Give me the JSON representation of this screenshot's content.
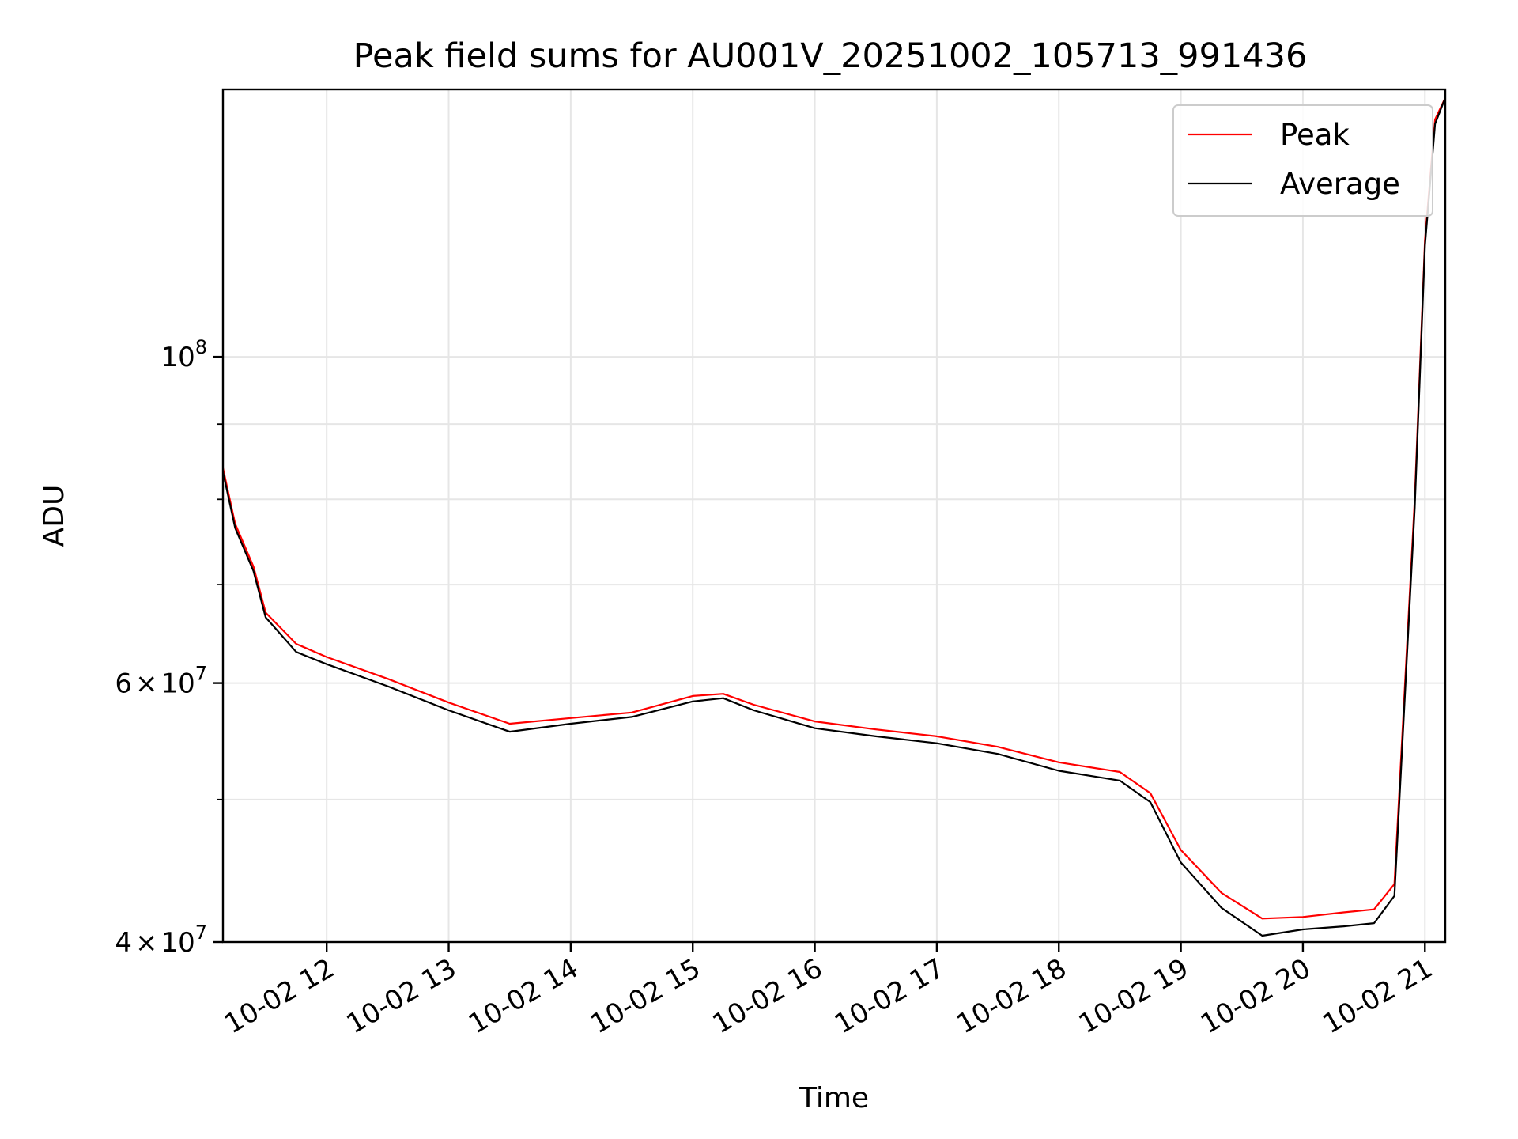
{
  "chart_data": {
    "type": "line",
    "title": "Peak field sums for AU001V_20251002_105713_991436",
    "xlabel": "Time",
    "ylabel": "ADU",
    "y_scale": "log",
    "ylim": [
      40000000,
      152000000
    ],
    "xlim": [
      "10-02 11:09",
      "10-02 21:10"
    ],
    "grid": true,
    "legend_position": "top-right",
    "x_ticks": [
      "10-02 12",
      "10-02 13",
      "10-02 14",
      "10-02 15",
      "10-02 16",
      "10-02 17",
      "10-02 18",
      "10-02 19",
      "10-02 20",
      "10-02 21"
    ],
    "y_ticks": [
      {
        "value": 40000000,
        "mantissa": "4",
        "exponent": "7"
      },
      {
        "value": 60000000,
        "mantissa": "6",
        "exponent": "7"
      },
      {
        "value": 100000000,
        "mantissa": "",
        "exponent": "8"
      }
    ],
    "y_minor_ticks": [
      50000000,
      70000000,
      80000000,
      90000000
    ],
    "series": [
      {
        "name": "Peak",
        "color": "#ff0000",
        "x": [
          "10-02 11:09",
          "10-02 11:15",
          "10-02 11:24",
          "10-02 11:30",
          "10-02 11:45",
          "10-02 12:00",
          "10-02 12:30",
          "10-02 13:00",
          "10-02 13:30",
          "10-02 14:00",
          "10-02 14:30",
          "10-02 15:00",
          "10-02 15:15",
          "10-02 15:30",
          "10-02 16:00",
          "10-02 16:30",
          "10-02 17:00",
          "10-02 17:30",
          "10-02 18:00",
          "10-02 18:30",
          "10-02 18:45",
          "10-02 19:00",
          "10-02 19:20",
          "10-02 19:40",
          "10-02 20:00",
          "10-02 20:20",
          "10-02 20:35",
          "10-02 20:45",
          "10-02 20:55",
          "10-02 21:00",
          "10-02 21:05",
          "10-02 21:10"
        ],
        "y": [
          84000000,
          77000000,
          72000000,
          67000000,
          63800000,
          62500000,
          60400000,
          58200000,
          56300000,
          56800000,
          57300000,
          58800000,
          59000000,
          58000000,
          56500000,
          55800000,
          55200000,
          54300000,
          53000000,
          52200000,
          50500000,
          46200000,
          43200000,
          41500000,
          41600000,
          41900000,
          42100000,
          43800000,
          80000000,
          120000000,
          145000000,
          150000000
        ]
      },
      {
        "name": "Average",
        "color": "#000000",
        "x": [
          "10-02 11:09",
          "10-02 11:15",
          "10-02 11:24",
          "10-02 11:30",
          "10-02 11:45",
          "10-02 12:00",
          "10-02 12:30",
          "10-02 13:00",
          "10-02 13:30",
          "10-02 14:00",
          "10-02 14:30",
          "10-02 15:00",
          "10-02 15:15",
          "10-02 15:30",
          "10-02 16:00",
          "10-02 16:30",
          "10-02 17:00",
          "10-02 17:30",
          "10-02 18:00",
          "10-02 18:30",
          "10-02 18:45",
          "10-02 19:00",
          "10-02 19:20",
          "10-02 19:40",
          "10-02 20:00",
          "10-02 20:20",
          "10-02 20:35",
          "10-02 20:45",
          "10-02 20:55",
          "10-02 21:00",
          "10-02 21:05",
          "10-02 21:10"
        ],
        "y": [
          83500000,
          76500000,
          71500000,
          66500000,
          63000000,
          61800000,
          59700000,
          57500000,
          55600000,
          56300000,
          56900000,
          58300000,
          58600000,
          57500000,
          55900000,
          55200000,
          54600000,
          53700000,
          52300000,
          51500000,
          49800000,
          45300000,
          42200000,
          40400000,
          40800000,
          41000000,
          41200000,
          43000000,
          79000000,
          119000000,
          144000000,
          150000000
        ]
      }
    ]
  }
}
